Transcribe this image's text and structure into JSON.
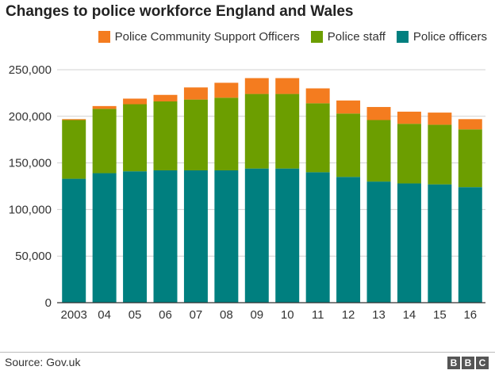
{
  "title": "Changes to police workforce England and Wales",
  "source": "Source: Gov.uk",
  "logo": [
    "B",
    "B",
    "C"
  ],
  "colors": {
    "pcso": "#f47c1f",
    "staff": "#6c9e00",
    "officers": "#007f7f",
    "grid": "#d0d0d0",
    "axis": "#333333"
  },
  "chart_data": {
    "type": "bar",
    "stacked": true,
    "title": "Changes to police workforce England and Wales",
    "categories": [
      "2003",
      "04",
      "05",
      "06",
      "07",
      "08",
      "09",
      "10",
      "11",
      "12",
      "13",
      "14",
      "15",
      "16"
    ],
    "series": [
      {
        "name": "Police officers",
        "color": "#007f7f",
        "values": [
          133000,
          139000,
          141000,
          142000,
          142000,
          142000,
          144000,
          144000,
          140000,
          135000,
          130000,
          128000,
          127000,
          124000
        ]
      },
      {
        "name": "Police staff",
        "color": "#6c9e00",
        "values": [
          63000,
          69000,
          72000,
          74000,
          76000,
          78000,
          80000,
          80000,
          74000,
          68000,
          66000,
          64000,
          64000,
          62000
        ]
      },
      {
        "name": "Police Community Support Officers",
        "color": "#f47c1f",
        "values": [
          1000,
          3000,
          6000,
          7000,
          13000,
          16000,
          17000,
          17000,
          16000,
          14000,
          14000,
          13000,
          13000,
          11000
        ]
      }
    ],
    "legend_order": [
      "Police Community Support Officers",
      "Police staff",
      "Police officers"
    ],
    "yticks": [
      "0",
      "50,000",
      "100,000",
      "150,000",
      "200,000",
      "250,000"
    ],
    "ylim": [
      0,
      250000
    ],
    "grid": true,
    "legend_position": "top-right",
    "xlabel": "",
    "ylabel": ""
  }
}
